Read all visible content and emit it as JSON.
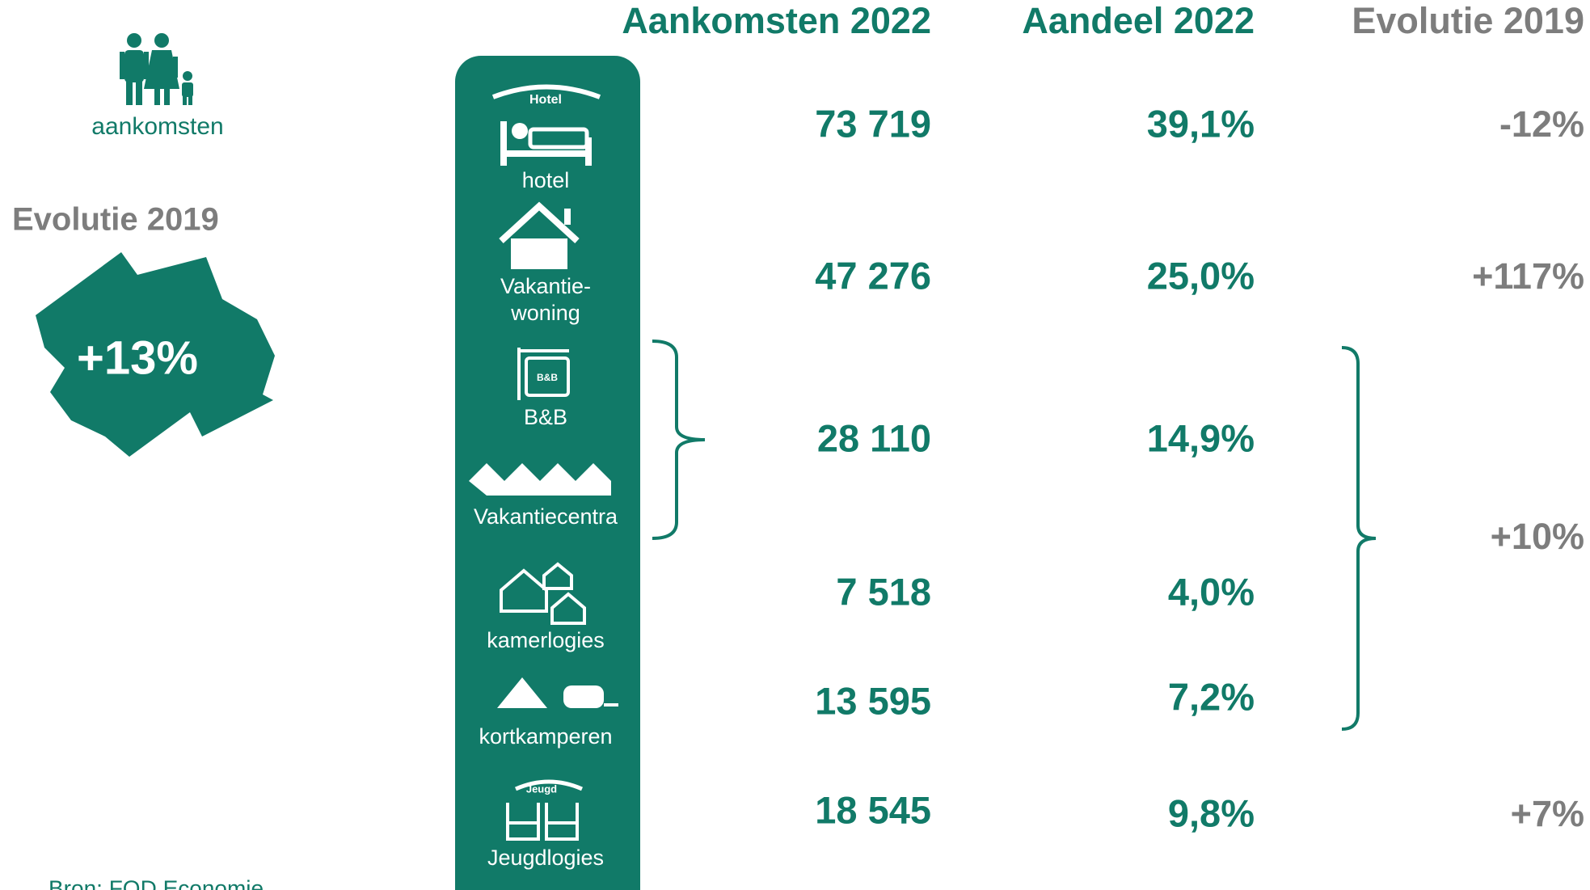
{
  "headers": {
    "arrivals": "Aankomsten 2022",
    "share": "Aandeel 2022",
    "evolution": "Evolutie 2019"
  },
  "summary": {
    "icon_label": "aankomsten",
    "evolution_title": "Evolutie 2019",
    "evolution_value": "+13%"
  },
  "icons": {
    "hotel_sign": "Hotel",
    "bnb_sign": "B&B",
    "youth_sign": "Jeugd"
  },
  "rows": [
    {
      "label": [
        "hotel"
      ],
      "arrivals": "73 719",
      "share": "39,1%"
    },
    {
      "label": [
        "Vakantie-",
        "woning"
      ],
      "arrivals": "47 276",
      "share": "25,0%"
    },
    {
      "label": [
        "B&B"
      ]
    },
    {
      "label": [
        "Vakantiecentra"
      ]
    },
    {
      "label": [
        "kamerlogies"
      ],
      "arrivals": "7 518",
      "share": "4,0%"
    },
    {
      "label": [
        "kortkamperen"
      ],
      "arrivals": "13 595",
      "share": "7,2%"
    },
    {
      "label": [
        "Jeugdlogies"
      ],
      "arrivals": "18 545",
      "share": "9,8%"
    }
  ],
  "group": {
    "arrivals": "28 110",
    "share": "14,9%"
  },
  "evolution": [
    "-12%",
    "+117%",
    "+10%",
    "+7%"
  ],
  "source": "Bron: FOD Economie"
}
